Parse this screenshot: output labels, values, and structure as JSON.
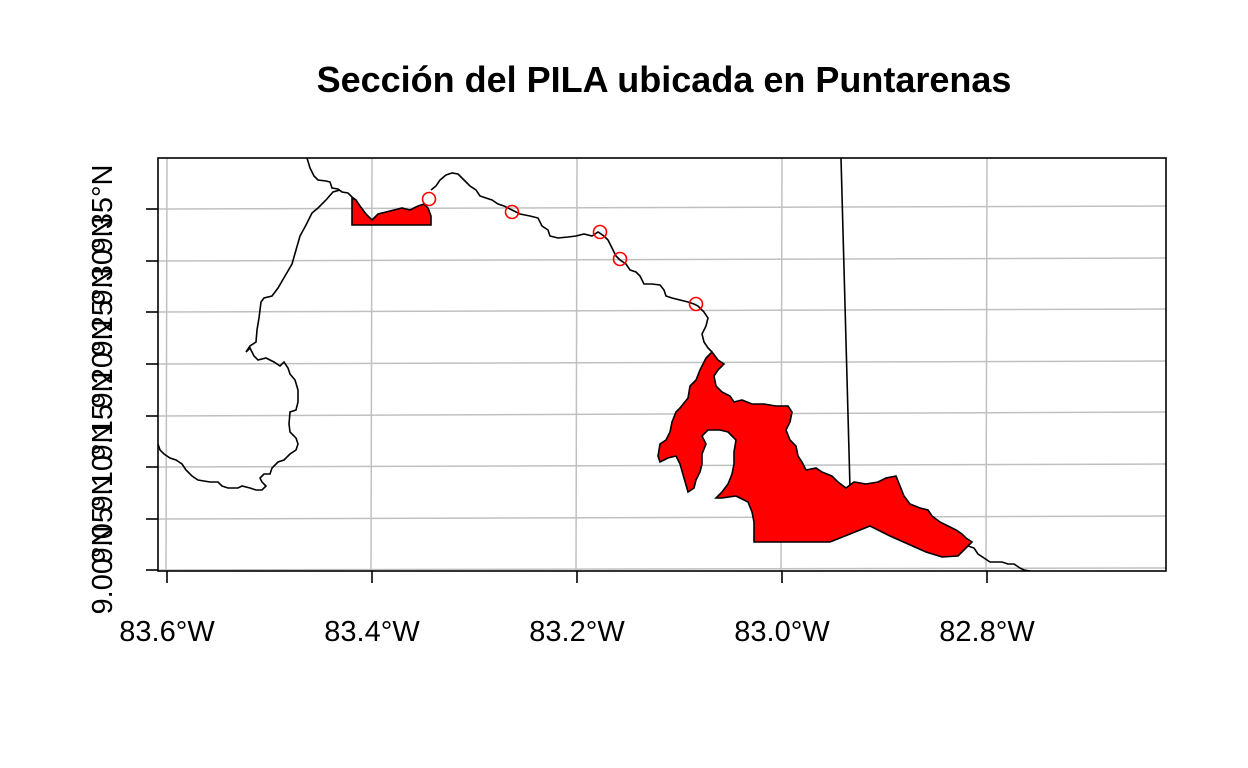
{
  "title": "Sección del PILA ubicada en Puntarenas",
  "axes": {
    "x_ticks": [
      "83.6°W",
      "83.4°W",
      "83.2°W",
      "83.0°W",
      "82.8°W"
    ],
    "y_ticks": [
      "9.00°N",
      "9.05°N",
      "9.10°N",
      "9.15°N",
      "9.20°N",
      "9.25°N",
      "9.30°N",
      "9.35°N"
    ]
  },
  "colors": {
    "park_fill": "#ff0000",
    "grid": "#c0c0c0",
    "boundary": "#000000",
    "point_stroke": "#ff0000"
  },
  "map_features": {
    "boundary_lines": [
      "costa-rica-panama-border-west",
      "panama-provincial-line"
    ],
    "park_polygons": [
      "pila-north-section",
      "pila-main-section"
    ],
    "point_markers": 5,
    "grid": true
  }
}
